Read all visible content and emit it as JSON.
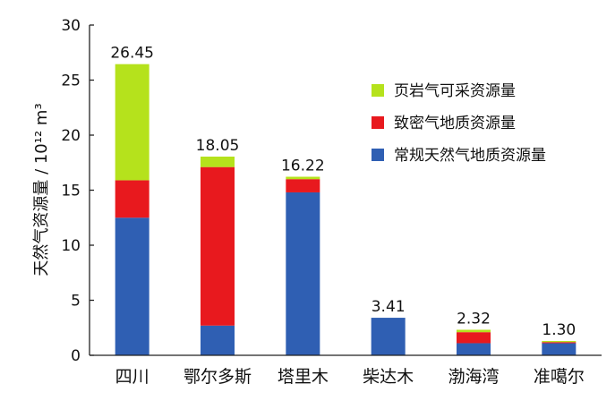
{
  "chart_data": {
    "type": "bar",
    "stacked": true,
    "categories": [
      "四川",
      "鄂尔多斯",
      "塔里木",
      "柴达木",
      "渤海湾",
      "准噶尔"
    ],
    "series": [
      {
        "name": "常规天然气地质资源量",
        "color": "#2f5fb3",
        "values": [
          12.5,
          2.7,
          14.8,
          3.41,
          1.1,
          1.1
        ]
      },
      {
        "name": "致密气地质资源量",
        "color": "#e8191e",
        "values": [
          3.4,
          14.4,
          1.2,
          0,
          1.0,
          0.1
        ]
      },
      {
        "name": "页岩气可采资源量",
        "color": "#b5e21c",
        "values": [
          10.55,
          0.95,
          0.22,
          0,
          0.22,
          0.1
        ]
      }
    ],
    "totals": [
      "26.45",
      "18.05",
      "16.22",
      "3.41",
      "2.32",
      "1.30"
    ],
    "ylabel": "天然气资源量 / 10¹² m³",
    "ylim": [
      0,
      30
    ],
    "yticks": [
      0,
      5,
      10,
      15,
      20,
      25,
      30
    ],
    "grid": false,
    "legend_position": "top-right"
  }
}
